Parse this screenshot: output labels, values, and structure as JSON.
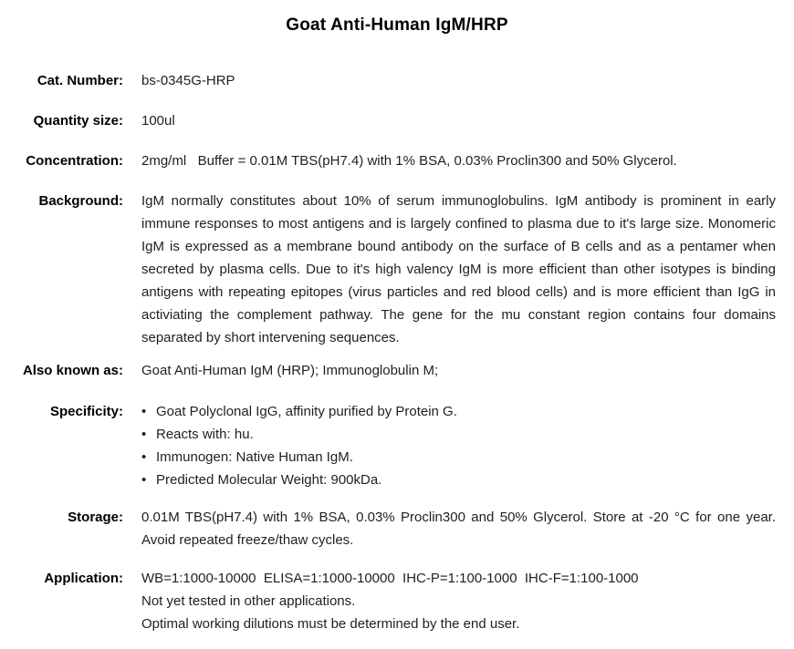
{
  "document": {
    "title": "Goat Anti-Human IgM/HRP"
  },
  "fields": [
    {
      "key": "catnumber",
      "type": "text",
      "label": "Cat. Number:",
      "value": "bs-0345G-HRP"
    },
    {
      "key": "quantitysize",
      "type": "text",
      "label": "Quantity size:",
      "value": "100ul"
    },
    {
      "key": "concentration",
      "type": "text",
      "label": "Concentration:",
      "value": "2mg/ml   Buffer = 0.01M TBS(pH7.4) with 1% BSA, 0.03% Proclin300 and 50% Glycerol."
    },
    {
      "key": "background",
      "type": "paragraph",
      "label": "Background:",
      "value": "IgM normally constitutes about 10% of serum immunoglobulins. IgM antibody is prominent in early immune responses to most antigens and is largely confined to plasma due to it's large size. Monomeric IgM is expressed as a membrane bound antibody on the surface of B cells and as a pentamer when secreted by plasma cells. Due to it's high valency IgM is more efficient than other isotypes is binding antigens with repeating epitopes (virus particles and red blood cells) and is more efficient than IgG in activiating the complement pathway. The gene for the mu constant region contains four domains separated by short intervening sequences."
    },
    {
      "key": "alsoknownas",
      "type": "text",
      "label": "Also known as:",
      "value": "Goat Anti-Human IgM (HRP); Immunoglobulin M;"
    },
    {
      "key": "specificity",
      "type": "bullets",
      "label": "Specificity:",
      "items": [
        "Goat Polyclonal IgG, affinity purified by Protein G.",
        "Reacts with: hu.",
        "Immunogen: Native Human IgM.",
        "Predicted Molecular Weight: 900kDa."
      ]
    },
    {
      "key": "storage",
      "type": "paragraph",
      "label": "Storage:",
      "value": "0.01M TBS(pH7.4) with 1% BSA, 0.03% Proclin300 and 50% Glycerol. Store at -20 °C for one year. Avoid repeated freeze/thaw cycles."
    },
    {
      "key": "application",
      "type": "lines",
      "label": "Application:",
      "lines": [
        "WB=1:1000-10000  ELISA=1:1000-10000  IHC-P=1:100-1000  IHC-F=1:100-1000",
        "Not yet tested in other applications.",
        "Optimal working dilutions must be determined by the end user."
      ]
    }
  ]
}
